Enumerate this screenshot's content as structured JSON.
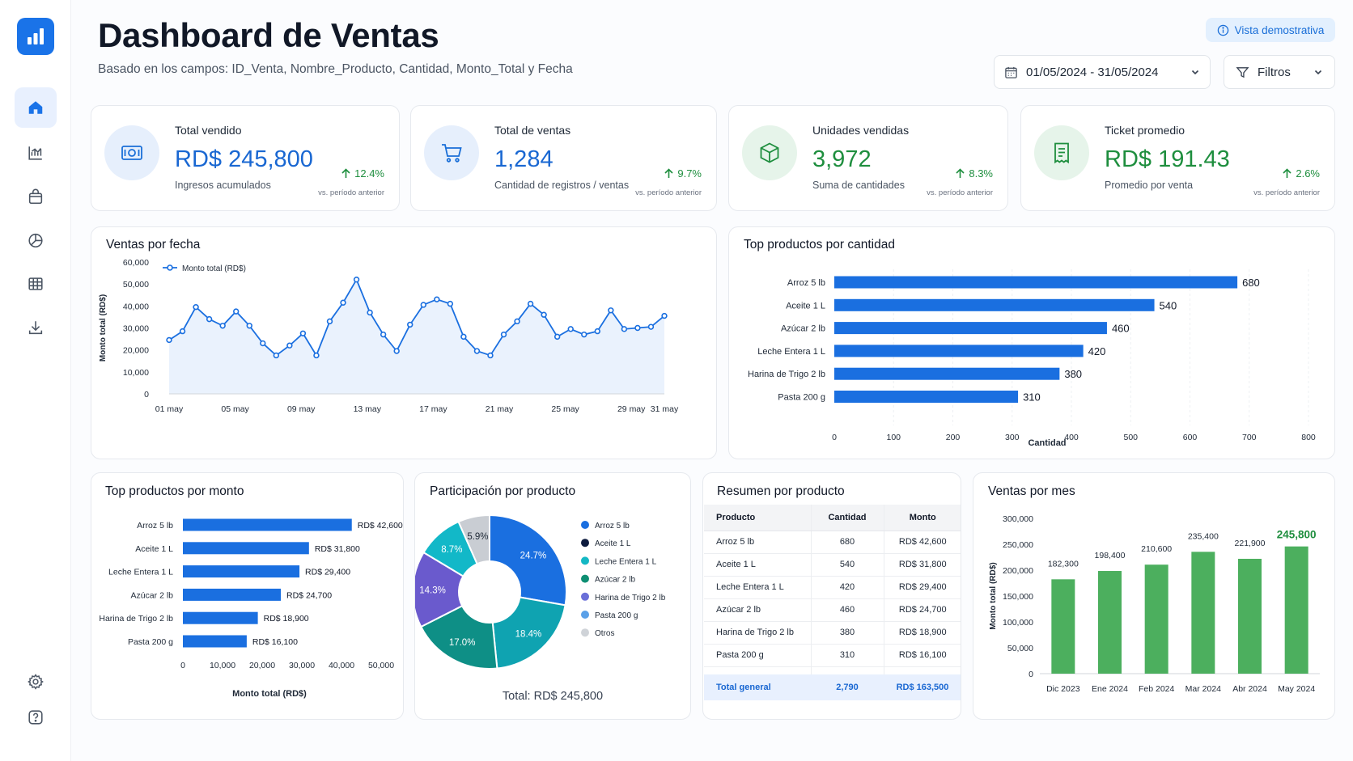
{
  "header": {
    "title": "Dashboard de Ventas",
    "subtitle": "Basado en los campos: ID_Venta, Nombre_Producto, Cantidad, Monto_Total y Fecha",
    "demo_badge": "Vista demostrativa",
    "date_range": "01/05/2024 - 31/05/2024",
    "filters_label": "Filtros"
  },
  "sidebar": {
    "items": [
      {
        "icon": "home-icon",
        "active": true
      },
      {
        "icon": "line-chart-icon"
      },
      {
        "icon": "shopping-bag-icon"
      },
      {
        "icon": "pie-chart-icon"
      },
      {
        "icon": "table-icon"
      },
      {
        "icon": "download-icon"
      },
      {
        "icon": "gear-icon"
      },
      {
        "icon": "help-icon"
      }
    ]
  },
  "kpis": [
    {
      "label": "Total vendido",
      "value": "RD$ 245,800",
      "sub": "Ingresos acumulados",
      "delta": "12.4%",
      "note": "vs. período anterior",
      "color": "blue",
      "icon": "money-icon"
    },
    {
      "label": "Total de ventas",
      "value": "1,284",
      "sub": "Cantidad de registros / ventas",
      "delta": "9.7%",
      "note": "vs. período anterior",
      "color": "blue",
      "icon": "cart-icon"
    },
    {
      "label": "Unidades vendidas",
      "value": "3,972",
      "sub": "Suma de cantidades",
      "delta": "8.3%",
      "note": "vs. período anterior",
      "color": "green",
      "icon": "box-icon"
    },
    {
      "label": "Ticket promedio",
      "value": "RD$ 191.43",
      "sub": "Promedio por venta",
      "delta": "2.6%",
      "note": "vs. período anterior",
      "color": "green",
      "icon": "receipt-icon"
    }
  ],
  "colors": {
    "accent": "#1a73e8",
    "line": "#1a6fe0",
    "bar_blue": "#1a6fe0",
    "bar_green": "#4caf5e",
    "positive": "#1e8e3e"
  },
  "charts": {
    "sales_by_date_title": "Ventas por fecha",
    "top_qty_title": "Top productos por cantidad",
    "top_amount_title": "Top productos por monto",
    "share_title": "Participación por producto",
    "share_total": "Total: RD$ 245,800",
    "summary_title": "Resumen por producto",
    "monthly_title": "Ventas por mes"
  },
  "summary_table": {
    "headers": [
      "Producto",
      "Cantidad",
      "Monto"
    ],
    "rows": [
      [
        "Arroz 5 lb",
        "680",
        "RD$ 42,600"
      ],
      [
        "Aceite 1 L",
        "540",
        "RD$ 31,800"
      ],
      [
        "Leche Entera 1 L",
        "420",
        "RD$ 29,400"
      ],
      [
        "Azúcar 2 lb",
        "460",
        "RD$ 24,700"
      ],
      [
        "Harina de Trigo 2 lb",
        "380",
        "RD$ 18,900"
      ],
      [
        "Pasta 200 g",
        "310",
        "RD$ 16,100"
      ]
    ],
    "total": [
      "Total general",
      "2,790",
      "RD$ 163,500"
    ]
  },
  "chart_data": [
    {
      "type": "line",
      "title": "Ventas por fecha",
      "ylabel": "Monto total (RD$)",
      "xlabel": "",
      "legend": "Monto total (RD$)",
      "ylim": [
        0,
        60000
      ],
      "yticks": [
        "60,000",
        "50,000",
        "40,000",
        "30,000",
        "20,000",
        "10,000",
        "0"
      ],
      "xtick_labels": [
        "01 may",
        "05 may",
        "09 may",
        "13 may",
        "17 may",
        "21 may",
        "25 may",
        "29 may",
        "31 may"
      ],
      "xtick_days": [
        1,
        5,
        9,
        13,
        17,
        21,
        25,
        29,
        31
      ],
      "x_start_day": 1,
      "x_end_day": 31,
      "x": [
        1,
        2,
        3,
        4,
        5,
        6,
        7,
        8,
        9,
        10,
        11,
        12,
        13,
        14,
        15,
        16,
        17,
        18,
        19,
        20,
        21,
        22,
        23,
        24,
        25,
        26,
        27,
        28,
        29,
        30,
        31,
        32,
        33,
        34,
        35,
        36,
        37,
        38
      ],
      "values": [
        24500,
        28500,
        39500,
        34000,
        31000,
        37500,
        31000,
        23000,
        17500,
        22000,
        27500,
        17500,
        33000,
        41500,
        52000,
        37000,
        27000,
        19500,
        31500,
        40500,
        43000,
        41000,
        26000,
        19500,
        17500,
        27000,
        33000,
        41000,
        36000,
        26000,
        29500,
        27000,
        28500,
        38000,
        29500,
        30000,
        30500,
        35500
      ]
    },
    {
      "type": "bar",
      "orientation": "horizontal",
      "title": "Top productos por cantidad",
      "xlabel": "Cantidad",
      "categories": [
        "Arroz 5 lb",
        "Aceite 1 L",
        "Azúcar 2 lb",
        "Leche Entera 1 L",
        "Harina de Trigo 2 lb",
        "Pasta 200 g"
      ],
      "values": [
        680,
        540,
        460,
        420,
        380,
        310
      ],
      "value_labels": [
        "680",
        "540",
        "460",
        "420",
        "380",
        "310"
      ],
      "xlim": [
        0,
        800
      ],
      "xticks": [
        "0",
        "100",
        "200",
        "300",
        "400",
        "500",
        "600",
        "700",
        "800"
      ]
    },
    {
      "type": "bar",
      "orientation": "horizontal",
      "title": "Top productos por monto",
      "xlabel": "Monto total (RD$)",
      "categories": [
        "Arroz 5 lb",
        "Aceite 1 L",
        "Leche Entera 1 L",
        "Azúcar 2 lb",
        "Harina de Trigo 2 lb",
        "Pasta 200 g"
      ],
      "values": [
        42600,
        31800,
        29400,
        24700,
        18900,
        16100
      ],
      "value_labels": [
        "RD$ 42,600",
        "RD$ 31,800",
        "RD$ 29,400",
        "RD$ 24,700",
        "RD$ 18,900",
        "RD$ 16,100"
      ],
      "xlim": [
        0,
        50000
      ],
      "xticks": [
        "0",
        "10,000",
        "20,000",
        "30,000",
        "40,000",
        "50,000"
      ]
    },
    {
      "type": "pie",
      "title": "Participación por producto",
      "categories": [
        "Arroz 5 lb",
        "Aceite 1 L",
        "Leche Entera 1 L",
        "Azúcar 2 lb",
        "Harina de Trigo 2 lb",
        "Pasta 200 g",
        "Otros"
      ],
      "values": [
        24.7,
        18.4,
        17.0,
        14.3,
        8.7,
        5.9,
        11.0
      ],
      "slice_labels": [
        "24.7%",
        "18.4%",
        "17.0%",
        "14.3%",
        "8.7%",
        "5.9%",
        ""
      ],
      "slice_colors": [
        "#1a6fe0",
        "#0fa3b1",
        "#0e8f86",
        "#6a5acd",
        "#12b8c8",
        "#c9cdd3",
        "#c9cdd3"
      ],
      "legend_colors": [
        "#1a6fe0",
        "#0d1b3e",
        "#14b8c4",
        "#0e8f73",
        "#6a6fd8",
        "#5aa0e8",
        "#cfd3d8"
      ],
      "total": "Total: RD$ 245,800"
    },
    {
      "type": "bar",
      "title": "Ventas por mes",
      "ylabel": "Monto total (RD$)",
      "categories": [
        "Dic 2023",
        "Ene 2024",
        "Feb 2024",
        "Mar 2024",
        "Abr 2024",
        "May 2024"
      ],
      "values": [
        182300,
        198400,
        210600,
        235400,
        221900,
        245800
      ],
      "value_labels": [
        "182,300",
        "198,400",
        "210,600",
        "235,400",
        "221,900",
        "245,800"
      ],
      "highlight_last": true,
      "ylim": [
        0,
        300000
      ],
      "yticks": [
        "300,000",
        "250,000",
        "200,000",
        "150,000",
        "100,000",
        "50,000",
        "0"
      ]
    }
  ]
}
